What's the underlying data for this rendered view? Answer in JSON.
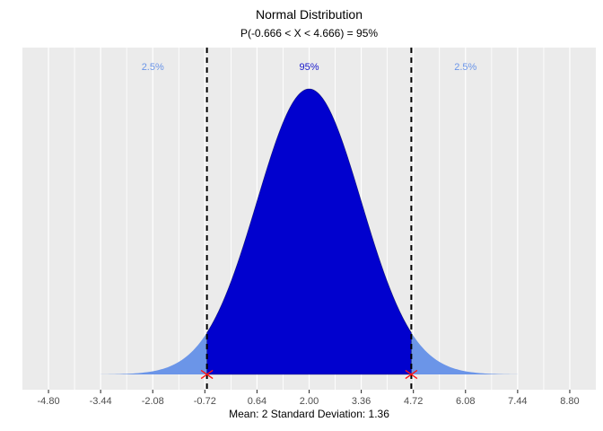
{
  "figure": {
    "title": "Normal Distribution",
    "subtitle": "P(-0.666 < X < 4.666) = 95%",
    "caption": "Mean: 2  Standard Deviation: 1.36"
  },
  "chart_data": {
    "type": "area",
    "distribution": "normal",
    "title": "Normal Distribution",
    "subtitle": "P(-0.666 < X < 4.666) = 95%",
    "xlabel": "Mean: 2  Standard Deviation: 1.36",
    "mean": 2,
    "sd": 1.36,
    "lower_bound": -0.666,
    "upper_bound": 4.666,
    "central_probability": "95%",
    "tail_probability": "2.5%",
    "curve_extent_sd": 4,
    "xlim": [
      -5.48,
      9.48
    ],
    "grid": "major-and-minor-vertical",
    "x_ticks": [
      {
        "value": -4.8,
        "label": "-4.80"
      },
      {
        "value": -3.44,
        "label": "-3.44"
      },
      {
        "value": -2.08,
        "label": "-2.08"
      },
      {
        "value": -0.72,
        "label": "-0.72"
      },
      {
        "value": 0.64,
        "label": "0.64"
      },
      {
        "value": 2.0,
        "label": "2.00"
      },
      {
        "value": 3.36,
        "label": "3.36"
      },
      {
        "value": 4.72,
        "label": "4.72"
      },
      {
        "value": 6.08,
        "label": "6.08"
      },
      {
        "value": 7.44,
        "label": "7.44"
      },
      {
        "value": 8.8,
        "label": "8.80"
      }
    ],
    "annotations": [
      {
        "x": -2.08,
        "label": "2.5%",
        "role": "tail"
      },
      {
        "x": 2.0,
        "label": "95%",
        "role": "center"
      },
      {
        "x": 6.08,
        "label": "2.5%",
        "role": "tail"
      }
    ],
    "boundary_lines": {
      "x": [
        -0.666,
        4.666
      ],
      "style": "dashed",
      "color": "#000000"
    },
    "markers": {
      "shape": "x",
      "x": [
        -0.666,
        4.666
      ],
      "y": 0,
      "color": "#FF1414"
    },
    "colors": {
      "panel_bg": "#EBEBEB",
      "grid": "#FFFFFF",
      "center_fill": "#0101CE",
      "tail_fill": "#6B95E8",
      "center_label": "#1A1ACC",
      "tail_label": "#6B95E8",
      "axis_text": "#4D4D4D",
      "tick_mark": "#333333"
    }
  }
}
